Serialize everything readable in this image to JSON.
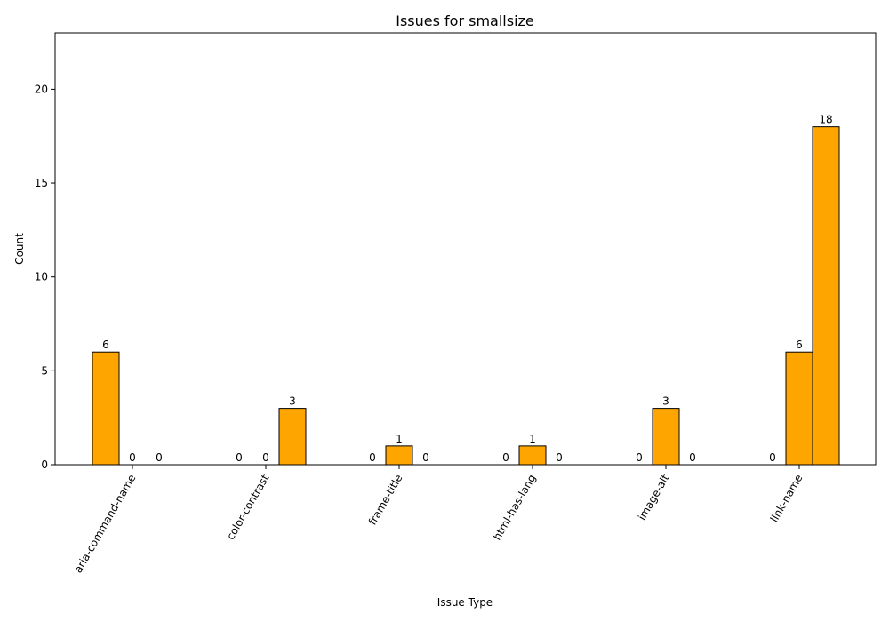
{
  "chart_data": {
    "type": "bar",
    "title": "Issues for smallsize",
    "xlabel": "Issue Type",
    "ylabel": "Count",
    "ylim": [
      0,
      23
    ],
    "yticks": [
      0,
      5,
      10,
      15,
      20
    ],
    "categories": [
      "aria-command-name",
      "color-contrast",
      "frame-title",
      "html-has-lang",
      "image-alt",
      "link-name"
    ],
    "series": [
      {
        "values": [
          6,
          0,
          0,
          0,
          0,
          0
        ]
      },
      {
        "values": [
          0,
          0,
          1,
          1,
          3,
          6
        ]
      },
      {
        "values": [
          0,
          3,
          0,
          0,
          0,
          18
        ]
      }
    ],
    "colors": {
      "bar_fill": "#FFA500",
      "bar_edge": "#000000"
    },
    "grid": false,
    "legend": "none"
  }
}
